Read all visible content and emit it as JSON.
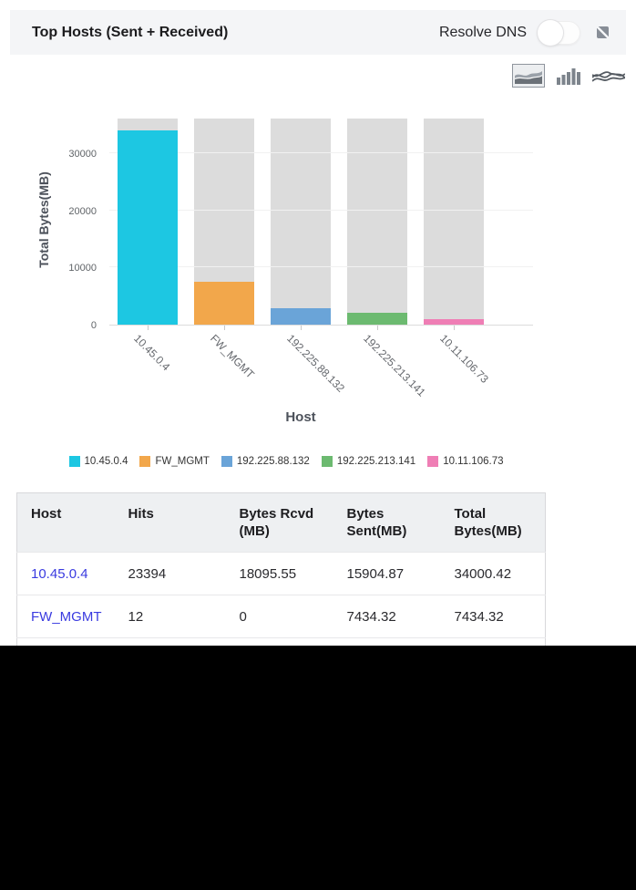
{
  "panel": {
    "title": "Top Hosts (Sent + Received)",
    "resolve_dns_label": "Resolve DNS",
    "resolve_dns_state": "off"
  },
  "toolbar": {
    "chart_types": [
      {
        "name": "area-chart",
        "selected": true
      },
      {
        "name": "bar-chart",
        "selected": false
      },
      {
        "name": "stream-chart",
        "selected": false
      }
    ]
  },
  "chart_data": {
    "type": "bar",
    "title": "",
    "xlabel": "Host",
    "ylabel": "Total Bytes(MB)",
    "categories": [
      "10.45.0.4",
      "FW_MGMT",
      "192.225.88.132",
      "192.225.213.141",
      "10.11.106.73"
    ],
    "values": [
      34000.42,
      7434.32,
      2800,
      2060,
      900
    ],
    "track_value": 36000,
    "ylim": [
      0,
      37000
    ],
    "yticks": [
      0,
      10000,
      20000,
      30000
    ],
    "colors": [
      "#1dc7e2",
      "#f2a74b",
      "#6aa4d8",
      "#6cba70",
      "#ef7eb5"
    ],
    "track_color": "#dcdcdc",
    "grid": true,
    "legend_position": "bottom"
  },
  "table": {
    "columns": [
      "Host",
      "Hits",
      "Bytes Rcvd (MB)",
      "Bytes Sent(MB)",
      "Total Bytes(MB)"
    ],
    "rows": [
      [
        "10.45.0.4",
        "23394",
        "18095.55",
        "15904.87",
        "34000.42"
      ],
      [
        "FW_MGMT",
        "12",
        "0",
        "7434.32",
        "7434.32"
      ]
    ]
  },
  "colors": {
    "header_bg": "#f4f5f7",
    "table_header_bg": "#eef0f2",
    "link": "#3a3be0",
    "icon_gray": "#7d848c"
  }
}
